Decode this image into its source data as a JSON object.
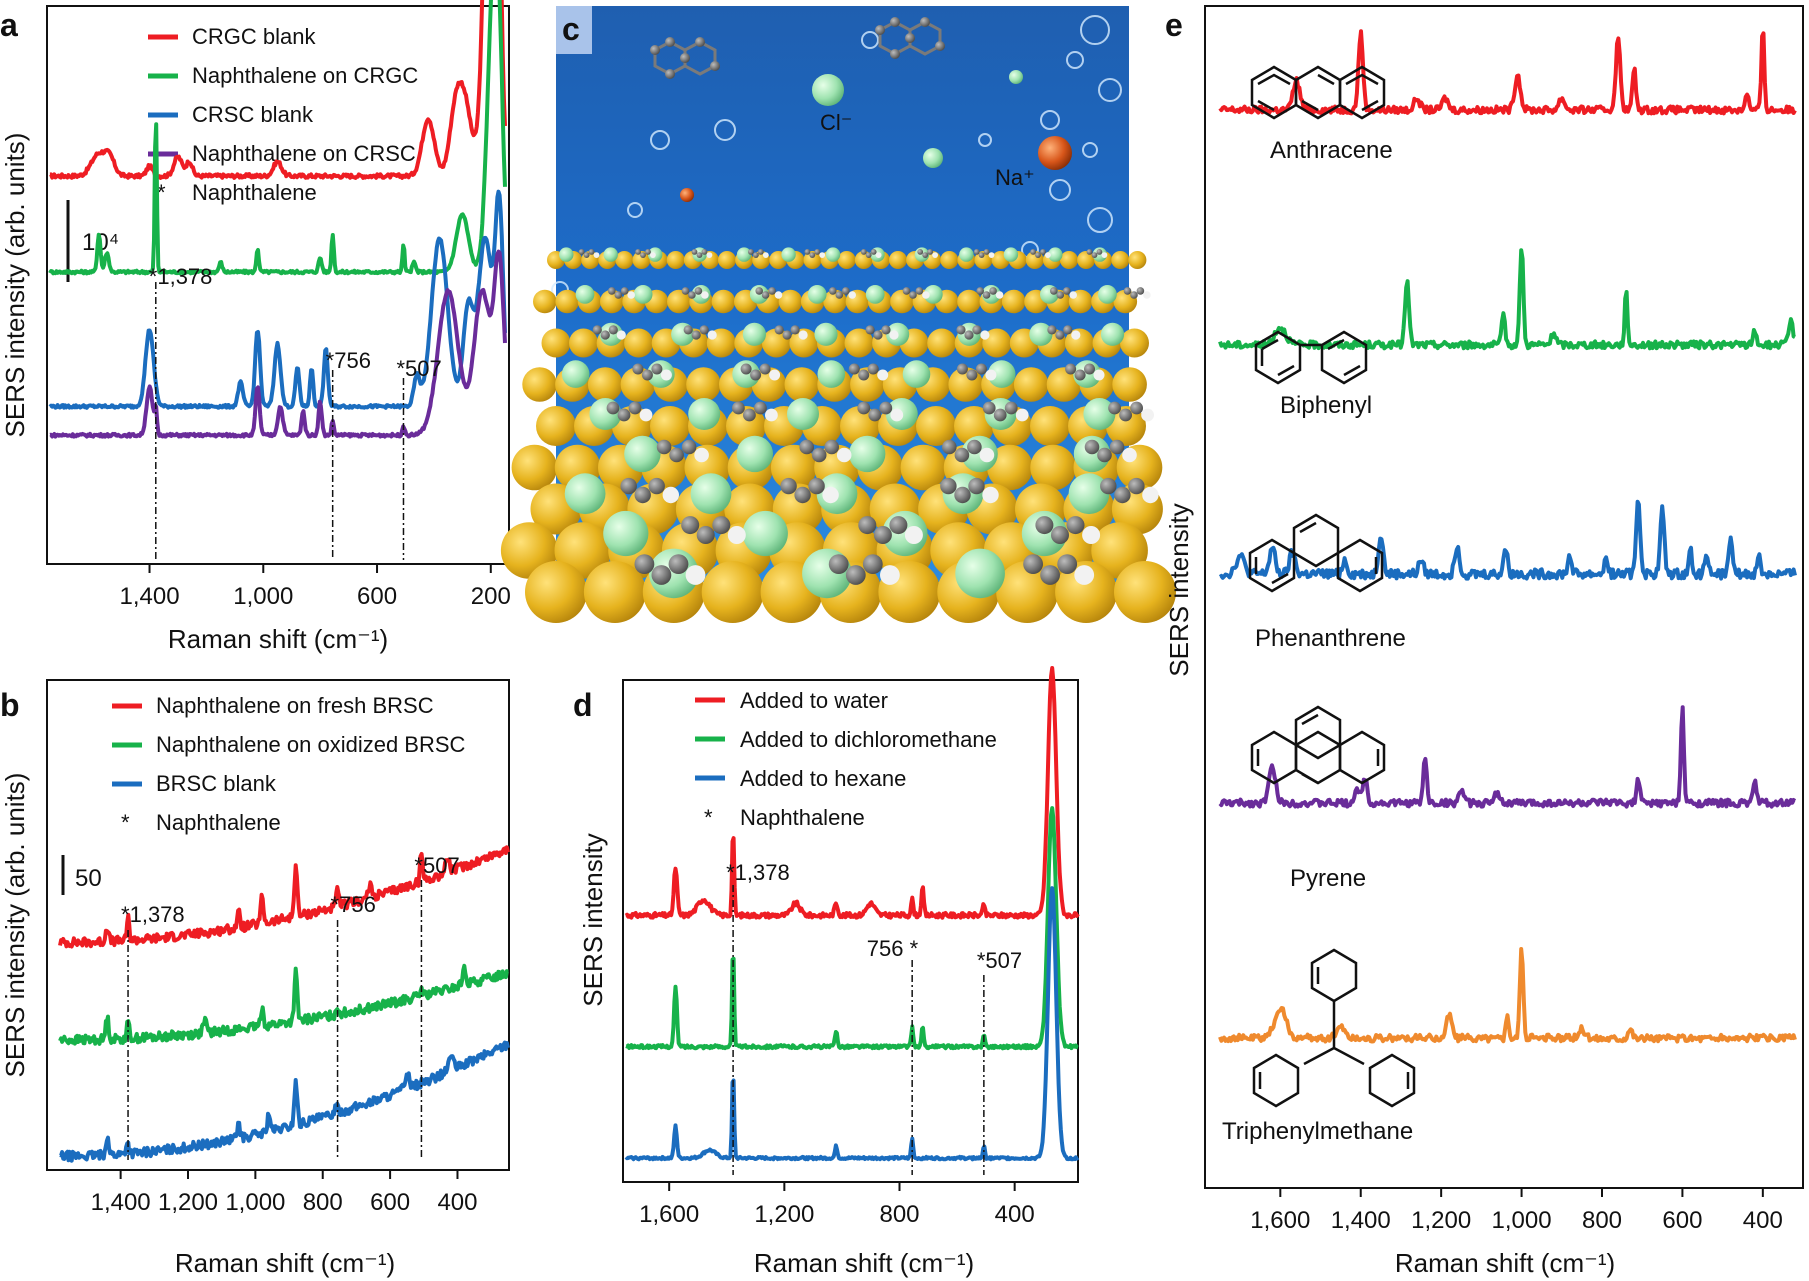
{
  "colors": {
    "red": "#ee1d23",
    "green": "#17b24a",
    "blue": "#1b6dbf",
    "purple": "#6a2c9a",
    "orange": "#ef8a2e",
    "ink": "#111111"
  },
  "chart_data": [
    {
      "panel": "a",
      "type": "line",
      "xlabel": "Raman shift (cm⁻¹)",
      "ylabel": "SERS intensity (arb. units)",
      "xlim": [
        1750,
        150
      ],
      "x_ticks": [
        "1,400",
        "1,000",
        "600",
        "200"
      ],
      "x_tick_values": [
        1400,
        1000,
        600,
        200
      ],
      "scale_bar": "10⁴",
      "legend": [
        "CRGC blank",
        "Naphthalene on CRGC",
        "CRSC blank",
        "Naphthalene on CRSC",
        "Naphthalene"
      ],
      "legend_marker": "*",
      "annotations": [
        {
          "text": "1,378",
          "x": 1378
        },
        {
          "text": "756",
          "x": 756
        },
        {
          "text": "507",
          "x": 507
        }
      ],
      "series": [
        {
          "name": "CRGC blank",
          "color": "red",
          "baseline": 0.8,
          "noise": 0.004,
          "peaks": [
            [
              1580,
              0.045,
              35
            ],
            [
              1540,
              0.035,
              25
            ],
            [
              1400,
              0.02,
              15
            ],
            [
              1300,
              0.04,
              20
            ],
            [
              1260,
              0.03,
              15
            ],
            [
              950,
              0.03,
              20
            ],
            [
              420,
              0.12,
              30
            ],
            [
              330,
              0.05,
              25
            ],
            [
              300,
              0.18,
              40
            ],
            [
              200,
              1.0,
              30
            ],
            [
              180,
              0.4,
              20
            ]
          ]
        },
        {
          "name": "Naphthalene on CRGC",
          "color": "green",
          "baseline": 0.6,
          "noise": 0.003,
          "peaks": [
            [
              1578,
              0.08,
              8
            ],
            [
              1550,
              0.04,
              10
            ],
            [
              1378,
              0.33,
              5
            ],
            [
              1150,
              0.02,
              8
            ],
            [
              1020,
              0.05,
              6
            ],
            [
              800,
              0.03,
              8
            ],
            [
              756,
              0.08,
              6
            ],
            [
              507,
              0.06,
              5
            ],
            [
              470,
              0.02,
              8
            ],
            [
              300,
              0.12,
              30
            ],
            [
              190,
              0.6,
              30
            ],
            [
              170,
              0.2,
              20
            ]
          ]
        },
        {
          "name": "CRSC blank",
          "color": "blue",
          "baseline": 0.32,
          "noise": 0.003,
          "peaks": [
            [
              1400,
              0.16,
              20
            ],
            [
              1080,
              0.05,
              12
            ],
            [
              1020,
              0.16,
              12
            ],
            [
              950,
              0.13,
              15
            ],
            [
              880,
              0.08,
              10
            ],
            [
              830,
              0.08,
              8
            ],
            [
              780,
              0.12,
              10
            ],
            [
              460,
              0.06,
              15
            ],
            [
              380,
              0.35,
              40
            ],
            [
              280,
              0.2,
              25
            ],
            [
              220,
              0.35,
              35
            ],
            [
              170,
              0.4,
              20
            ]
          ]
        },
        {
          "name": "Naphthalene on CRSC",
          "color": "purple",
          "baseline": 0.26,
          "noise": 0.003,
          "peaks": [
            [
              1400,
              0.1,
              15
            ],
            [
              1378,
              0.05,
              6
            ],
            [
              1020,
              0.1,
              10
            ],
            [
              940,
              0.06,
              12
            ],
            [
              860,
              0.05,
              8
            ],
            [
              800,
              0.07,
              8
            ],
            [
              756,
              0.03,
              6
            ],
            [
              507,
              0.02,
              6
            ],
            [
              350,
              0.3,
              50
            ],
            [
              230,
              0.3,
              40
            ],
            [
              170,
              0.35,
              25
            ]
          ]
        }
      ]
    },
    {
      "panel": "b",
      "type": "line",
      "xlabel": "Raman shift (cm⁻¹)",
      "ylabel": "SERS intensity (arb. units)",
      "xlim": [
        1580,
        250
      ],
      "x_ticks": [
        "1,400",
        "1,200",
        "1,000",
        "800",
        "600",
        "400"
      ],
      "x_tick_values": [
        1400,
        1200,
        1000,
        800,
        600,
        400
      ],
      "scale_bar": "50",
      "legend": [
        "Naphthalene on fresh BRSC",
        "Naphthalene on oxidized BRSC",
        "BRSC blank",
        "Naphthalene"
      ],
      "legend_marker": "*",
      "annotations": [
        {
          "text": "1,378",
          "x": 1378
        },
        {
          "text": "756",
          "x": 756
        },
        {
          "text": "507",
          "x": 507
        }
      ],
      "series": [
        {
          "name": "Naphthalene on fresh BRSC",
          "color": "red",
          "baseline": 0.62,
          "slope": 0.25,
          "noise": 0.012,
          "peaks": [
            [
              1440,
              0.04,
              6
            ],
            [
              1378,
              0.06,
              5
            ],
            [
              1050,
              0.04,
              6
            ],
            [
              980,
              0.07,
              6
            ],
            [
              880,
              0.14,
              6
            ],
            [
              756,
              0.05,
              5
            ],
            [
              660,
              0.03,
              8
            ],
            [
              507,
              0.08,
              5
            ],
            [
              430,
              0.04,
              8
            ]
          ]
        },
        {
          "name": "Naphthalene on oxidized BRSC",
          "color": "green",
          "baseline": 0.36,
          "slope": 0.18,
          "noise": 0.012,
          "peaks": [
            [
              1440,
              0.06,
              6
            ],
            [
              1378,
              0.04,
              6
            ],
            [
              1150,
              0.03,
              8
            ],
            [
              980,
              0.05,
              6
            ],
            [
              880,
              0.13,
              6
            ],
            [
              756,
              0.02,
              5
            ],
            [
              507,
              0.02,
              5
            ],
            [
              380,
              0.04,
              8
            ]
          ]
        },
        {
          "name": "BRSC blank",
          "color": "blue",
          "baseline": 0.05,
          "slope": 0.3,
          "noise": 0.012,
          "peaks": [
            [
              1440,
              0.05,
              6
            ],
            [
              1380,
              0.03,
              6
            ],
            [
              1050,
              0.04,
              6
            ],
            [
              960,
              0.05,
              6
            ],
            [
              880,
              0.12,
              6
            ],
            [
              760,
              0.02,
              8
            ],
            [
              550,
              0.04,
              10
            ],
            [
              420,
              0.04,
              10
            ]
          ]
        }
      ]
    },
    {
      "panel": "d",
      "type": "line",
      "xlabel": "Raman shift (cm⁻¹)",
      "ylabel": "SERS intensity",
      "xlim": [
        1750,
        180
      ],
      "x_ticks": [
        "1,600",
        "1,200",
        "800",
        "400"
      ],
      "x_tick_values": [
        1600,
        1200,
        800,
        400
      ],
      "legend": [
        "Added to water",
        "Added to dichloromethane",
        "Added to hexane",
        "Naphthalene"
      ],
      "legend_marker": "*",
      "annotations": [
        {
          "text": "1,378",
          "x": 1378
        },
        {
          "text": "756",
          "x": 756
        },
        {
          "text": "507",
          "x": 507
        }
      ],
      "series": [
        {
          "name": "Added to water",
          "color": "red",
          "baseline": 0.66,
          "noise": 0.006,
          "peaks": [
            [
              1578,
              0.12,
              8
            ],
            [
              1480,
              0.04,
              30
            ],
            [
              1378,
              0.22,
              5
            ],
            [
              1160,
              0.03,
              20
            ],
            [
              1020,
              0.03,
              8
            ],
            [
              900,
              0.03,
              20
            ],
            [
              756,
              0.04,
              6
            ],
            [
              720,
              0.07,
              6
            ],
            [
              507,
              0.03,
              5
            ],
            [
              270,
              0.62,
              20
            ]
          ]
        },
        {
          "name": "Added to dichloromethane",
          "color": "green",
          "baseline": 0.33,
          "noise": 0.004,
          "peaks": [
            [
              1578,
              0.15,
              7
            ],
            [
              1378,
              0.25,
              5
            ],
            [
              1020,
              0.04,
              6
            ],
            [
              756,
              0.05,
              5
            ],
            [
              720,
              0.05,
              5
            ],
            [
              507,
              0.03,
              5
            ],
            [
              270,
              0.6,
              20
            ]
          ]
        },
        {
          "name": "Added to hexane",
          "color": "blue",
          "baseline": 0.05,
          "noise": 0.003,
          "peaks": [
            [
              1578,
              0.08,
              7
            ],
            [
              1460,
              0.02,
              30
            ],
            [
              1378,
              0.22,
              5
            ],
            [
              1020,
              0.03,
              6
            ],
            [
              756,
              0.05,
              5
            ],
            [
              507,
              0.03,
              5
            ],
            [
              270,
              0.68,
              20
            ]
          ]
        }
      ]
    },
    {
      "panel": "e",
      "type": "line",
      "xlabel": "Raman shift (cm⁻¹)",
      "ylabel": "SERS intensity",
      "xlim": [
        1750,
        320
      ],
      "x_ticks": [
        "1,600",
        "1,400",
        "1,200",
        "1,000",
        "800",
        "600",
        "400"
      ],
      "x_tick_values": [
        1600,
        1400,
        1200,
        1000,
        800,
        600,
        400
      ],
      "series": [
        {
          "name": "Anthracene",
          "color": "red",
          "baseline": 0.915,
          "noise": 0.003,
          "peaks": [
            [
              1560,
              0.025,
              12
            ],
            [
              1400,
              0.065,
              8
            ],
            [
              1260,
              0.01,
              10
            ],
            [
              1190,
              0.01,
              10
            ],
            [
              1010,
              0.03,
              10
            ],
            [
              900,
              0.01,
              10
            ],
            [
              760,
              0.06,
              8
            ],
            [
              720,
              0.035,
              6
            ],
            [
              400,
              0.07,
              5
            ],
            [
              440,
              0.015,
              6
            ]
          ]
        },
        {
          "name": "Biphenyl",
          "color": "green",
          "baseline": 0.715,
          "noise": 0.003,
          "peaks": [
            [
              1600,
              0.015,
              20
            ],
            [
              1285,
              0.055,
              7
            ],
            [
              1045,
              0.025,
              6
            ],
            [
              1000,
              0.085,
              6
            ],
            [
              920,
              0.01,
              8
            ],
            [
              740,
              0.045,
              5
            ],
            [
              420,
              0.012,
              6
            ],
            [
              330,
              0.02,
              8
            ]
          ]
        },
        {
          "name": "Phenanthrene",
          "color": "blue",
          "baseline": 0.52,
          "noise": 0.004,
          "peaks": [
            [
              1700,
              0.015,
              15
            ],
            [
              1620,
              0.022,
              10
            ],
            [
              1570,
              0.018,
              10
            ],
            [
              1440,
              0.012,
              8
            ],
            [
              1350,
              0.035,
              8
            ],
            [
              1250,
              0.012,
              8
            ],
            [
              1160,
              0.025,
              8
            ],
            [
              1040,
              0.022,
              7
            ],
            [
              880,
              0.015,
              7
            ],
            [
              790,
              0.012,
              7
            ],
            [
              710,
              0.065,
              7
            ],
            [
              650,
              0.055,
              7
            ],
            [
              580,
              0.02,
              6
            ],
            [
              540,
              0.02,
              6
            ],
            [
              480,
              0.035,
              6
            ],
            [
              410,
              0.015,
              6
            ]
          ]
        },
        {
          "name": "Pyrene",
          "color": "purple",
          "baseline": 0.325,
          "noise": 0.003,
          "peaks": [
            [
              1620,
              0.03,
              12
            ],
            [
              1410,
              0.012,
              8
            ],
            [
              1390,
              0.022,
              8
            ],
            [
              1240,
              0.04,
              6
            ],
            [
              1150,
              0.012,
              8
            ],
            [
              1060,
              0.01,
              8
            ],
            [
              710,
              0.02,
              6
            ],
            [
              600,
              0.085,
              5
            ],
            [
              420,
              0.02,
              6
            ]
          ]
        },
        {
          "name": "Triphenylmethane",
          "color": "orange",
          "baseline": 0.125,
          "noise": 0.003,
          "peaks": [
            [
              1600,
              0.025,
              20
            ],
            [
              1450,
              0.01,
              15
            ],
            [
              1180,
              0.02,
              10
            ],
            [
              1035,
              0.02,
              5
            ],
            [
              1000,
              0.075,
              6
            ],
            [
              850,
              0.008,
              10
            ],
            [
              730,
              0.008,
              8
            ]
          ]
        }
      ]
    }
  ],
  "panels": {
    "a": {
      "letter": "a"
    },
    "b": {
      "letter": "b"
    },
    "c": {
      "letter": "c",
      "ion_cl": "Cl⁻",
      "ion_na": "Na⁺"
    },
    "d": {
      "letter": "d"
    },
    "e": {
      "letter": "e"
    }
  },
  "molecules": [
    "Anthracene",
    "Biphenyl",
    "Phenanthrene",
    "Pyrene",
    "Triphenylmethane"
  ]
}
